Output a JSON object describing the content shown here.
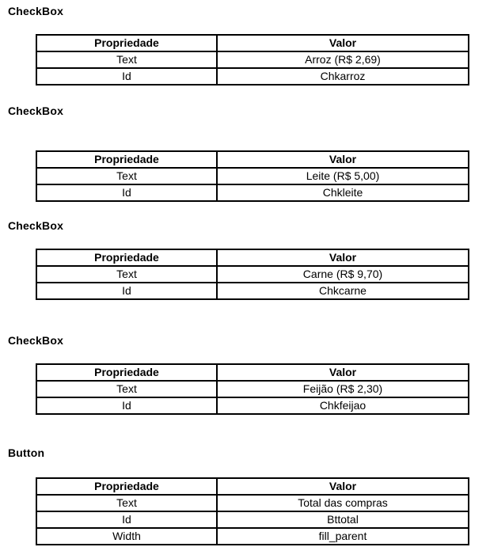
{
  "page": {
    "background_color": "#ffffff",
    "text_color": "#000000",
    "border_color": "#000000"
  },
  "table_headers": {
    "property": "Propriedade",
    "value": "Valor"
  },
  "sections": [
    {
      "heading": "CheckBox",
      "rows": [
        {
          "property": "Text",
          "value": "Arroz (R$ 2,69)"
        },
        {
          "property": "Id",
          "value": "Chkarroz"
        }
      ]
    },
    {
      "heading": "CheckBox",
      "rows": [
        {
          "property": "Text",
          "value": "Leite (R$ 5,00)"
        },
        {
          "property": "Id",
          "value": "Chkleite"
        }
      ]
    },
    {
      "heading": "CheckBox",
      "rows": [
        {
          "property": "Text",
          "value": "Carne (R$ 9,70)"
        },
        {
          "property": "Id",
          "value": "Chkcarne"
        }
      ]
    },
    {
      "heading": "CheckBox",
      "rows": [
        {
          "property": "Text",
          "value": "Feijão (R$ 2,30)"
        },
        {
          "property": "Id",
          "value": "Chkfeijao"
        }
      ]
    },
    {
      "heading": "Button",
      "rows": [
        {
          "property": "Text",
          "value": "Total das compras"
        },
        {
          "property": "Id",
          "value": "Bttotal"
        },
        {
          "property": "Width",
          "value": "fill_parent"
        }
      ]
    }
  ]
}
